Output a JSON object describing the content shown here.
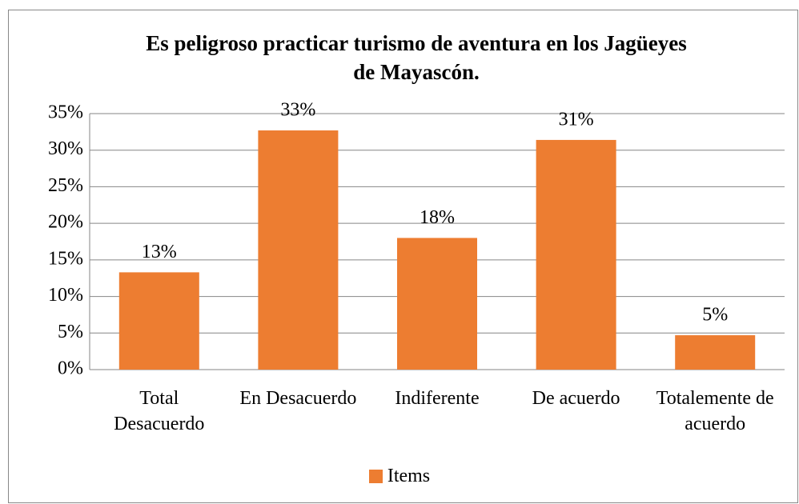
{
  "chart_data": {
    "type": "bar",
    "title": "Es peligroso practicar turismo de aventura en los Jagüeyes de Mayascón.",
    "categories": [
      "Total Desacuerdo",
      "En Desacuerdo",
      "Indiferente",
      "De acuerdo",
      "Totalemente de acuerdo"
    ],
    "series": [
      {
        "name": "Items",
        "color": "#ED7D31",
        "values": [
          13.3,
          32.7,
          18,
          31.4,
          4.7
        ],
        "value_labels": [
          "13%",
          "33%",
          "18%",
          "31%",
          "5%"
        ]
      }
    ],
    "ylim": [
      0,
      35
    ],
    "yticks": [
      {
        "value": 0,
        "label": "0%"
      },
      {
        "value": 5,
        "label": "5%"
      },
      {
        "value": 10,
        "label": "10%"
      },
      {
        "value": 15,
        "label": "15%"
      },
      {
        "value": 20,
        "label": "20%"
      },
      {
        "value": 25,
        "label": "25%"
      },
      {
        "value": 30,
        "label": "30%"
      },
      {
        "value": 35,
        "label": "35%"
      }
    ],
    "grid": true,
    "legend": "bottom"
  }
}
